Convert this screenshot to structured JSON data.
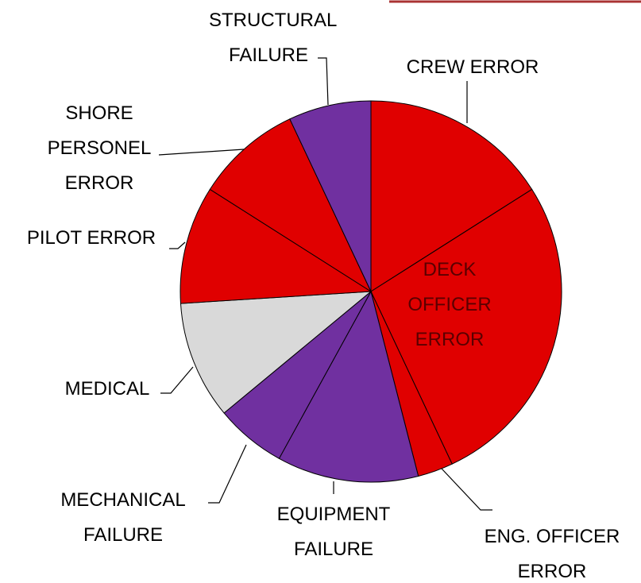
{
  "chart_data": {
    "type": "pie",
    "categories": [
      "CREW ERROR",
      "DECK OFFICER ERROR",
      "ENG. OFFICER ERROR",
      "EQUIPMENT FAILURE",
      "MECHANICAL FAILURE",
      "MEDICAL",
      "PILOT ERROR",
      "SHORE PERSONEL ERROR",
      "STRUCTURAL FAILURE"
    ],
    "values": [
      16,
      27,
      3,
      12,
      6,
      10,
      10,
      9,
      7
    ],
    "colors": [
      "#e00000",
      "#e00000",
      "#e00000",
      "#7030a0",
      "#7030a0",
      "#d9d9d9",
      "#e00000",
      "#e00000",
      "#7030a0"
    ]
  }
}
